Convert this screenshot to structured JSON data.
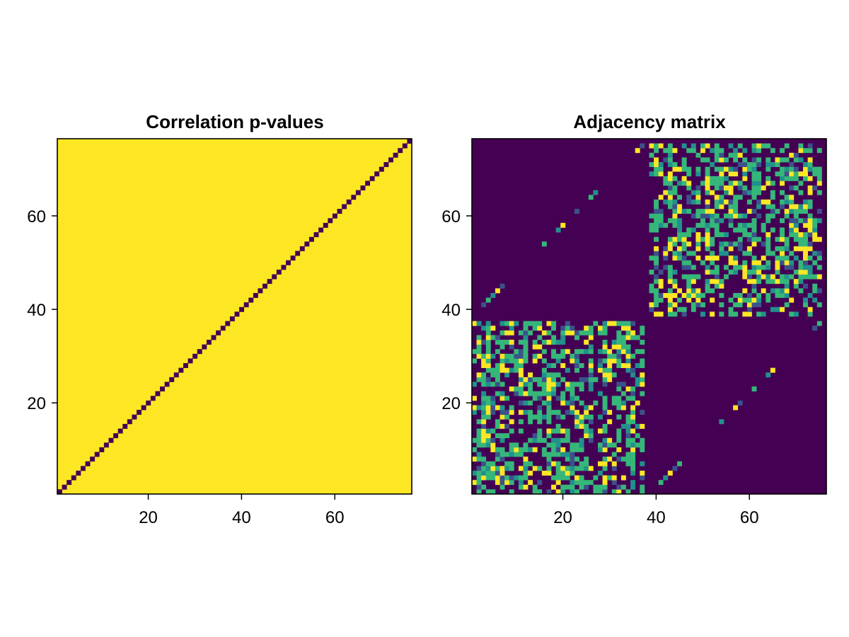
{
  "chart_data": [
    {
      "type": "heatmap",
      "title": "Correlation p-values",
      "n": 76,
      "xlim": [
        0.5,
        76.5
      ],
      "ylim": [
        0.5,
        76.5
      ],
      "x_ticks": [
        20,
        40,
        60
      ],
      "y_ticks": [
        20,
        40,
        60
      ],
      "colormap": [
        "#440154",
        "#3b528b",
        "#21918c",
        "#35b779",
        "#fde725"
      ],
      "background_color": "#fde725",
      "diagonal_color": "#440154",
      "cells_description": "all cells at maximum value except the main diagonal (minimum)"
    },
    {
      "type": "heatmap",
      "title": "Adjacency matrix",
      "n": 76,
      "xlim": [
        0.5,
        76.5
      ],
      "ylim": [
        0.5,
        76.5
      ],
      "x_ticks": [
        20,
        40,
        60
      ],
      "y_ticks": [
        20,
        40,
        60
      ],
      "colormap": [
        "#440154",
        "#3b528b",
        "#21918c",
        "#35b779",
        "#fde725"
      ],
      "background_color": "#440154",
      "block_split": 38,
      "off_diagonal_blocks": [
        {
          "rows": [
            1,
            38
          ],
          "cols": [
            1,
            38
          ],
          "filled": true,
          "description": "lower-left block: x 1-37, y 1-37"
        },
        {
          "rows": [
            39,
            76
          ],
          "cols": [
            39,
            76
          ],
          "filled": true,
          "description": "upper-right block: x 39-75, y 39-75"
        }
      ],
      "value_levels": [
        0,
        1,
        2,
        3,
        4
      ]
    }
  ]
}
